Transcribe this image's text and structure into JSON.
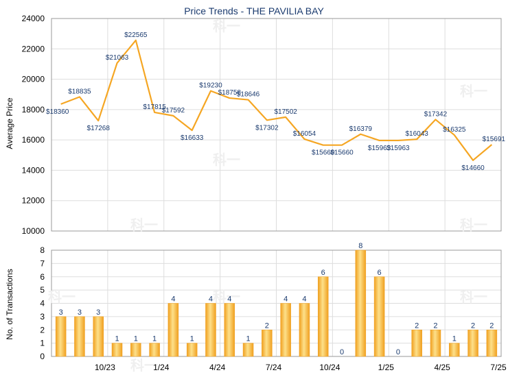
{
  "title": "Price Trends - THE PAVILIA BAY",
  "watermark": "科一",
  "colors": {
    "line": "#f5a623",
    "bar_light": "#fde08a",
    "bar_dark": "#f0a020",
    "title": "#1a3a6e",
    "grid": "#dddddd"
  },
  "chart_data": [
    {
      "type": "line",
      "title": "Price Trends - THE PAVILIA BAY",
      "ylabel": "Average Price",
      "ylim": [
        10000,
        24000
      ],
      "yticks": [
        10000,
        12000,
        14000,
        16000,
        18000,
        20000,
        22000,
        24000
      ],
      "values": [
        18360,
        18835,
        17268,
        21063,
        22565,
        17815,
        17592,
        16633,
        19230,
        18758,
        18646,
        17302,
        17502,
        16054,
        15660,
        15660,
        16379,
        15963,
        15963,
        16043,
        17342,
        16325,
        14660,
        15691
      ],
      "data_labels": [
        "$18360",
        "$18835",
        "$17268",
        "$21063",
        "$22565",
        "$17815",
        "$17592",
        "$16633",
        "$19230",
        "$18758",
        "$18646",
        "$17302",
        "$17502",
        "$16054",
        "$15660",
        "$15660",
        "$16379",
        "$15963",
        "$15963",
        "$16043",
        "$17342",
        "$16325",
        "$14660",
        "$15691"
      ],
      "grid": true
    },
    {
      "type": "bar",
      "ylabel": "No. of Transactions",
      "ylim": [
        0,
        8
      ],
      "yticks": [
        0,
        1,
        2,
        3,
        4,
        5,
        6,
        7,
        8
      ],
      "xtick_labels": [
        "10/23",
        "1/24",
        "4/24",
        "7/24",
        "10/24",
        "1/25",
        "4/25",
        "7/25"
      ],
      "xtick_after_index": [
        2,
        5,
        8,
        11,
        14,
        17,
        20,
        23
      ],
      "values": [
        3,
        3,
        3,
        1,
        1,
        1,
        4,
        1,
        4,
        4,
        1,
        2,
        4,
        4,
        6,
        0,
        8,
        6,
        0,
        2,
        2,
        1,
        2,
        2
      ],
      "grid": true
    }
  ]
}
